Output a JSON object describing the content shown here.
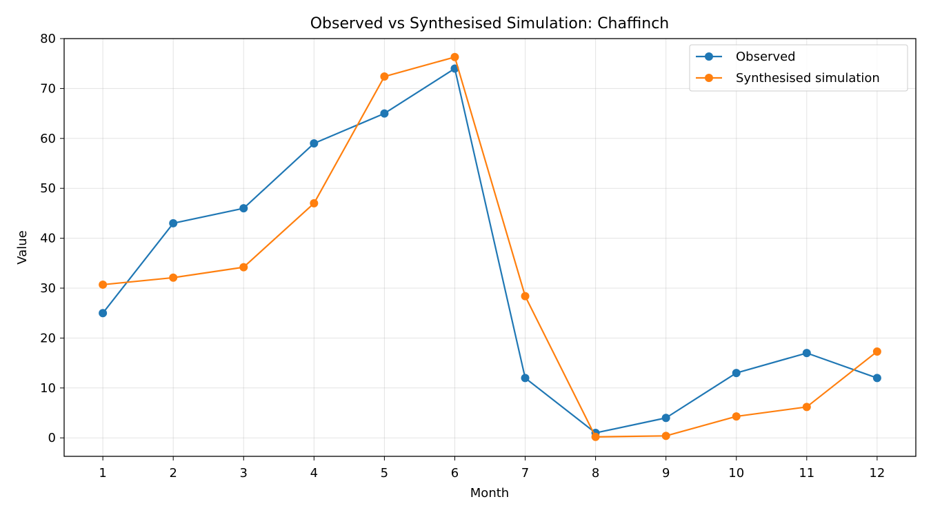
{
  "chart_data": {
    "type": "line",
    "title": "Observed vs Synthesised Simulation: Chaffinch",
    "xlabel": "Month",
    "ylabel": "Value",
    "x": [
      1,
      2,
      3,
      4,
      5,
      6,
      7,
      8,
      9,
      10,
      11,
      12
    ],
    "xlim": [
      0.45,
      12.55
    ],
    "ylim": [
      -3.7,
      80
    ],
    "x_ticks": [
      "1",
      "2",
      "3",
      "4",
      "5",
      "6",
      "7",
      "8",
      "9",
      "10",
      "11",
      "12"
    ],
    "y_ticks": [
      "0",
      "10",
      "20",
      "30",
      "40",
      "50",
      "60",
      "70",
      "80"
    ],
    "grid": true,
    "legend_position": "top-right",
    "series": [
      {
        "name": "Observed",
        "color": "#1f77b4",
        "marker": "circle",
        "values": [
          25,
          43,
          46,
          59,
          65,
          74,
          12,
          1,
          4,
          13,
          17,
          12
        ]
      },
      {
        "name": "Synthesised simulation",
        "color": "#ff7f0e",
        "marker": "circle",
        "values": [
          30.7,
          32.1,
          34.2,
          47,
          72.4,
          76.3,
          28.4,
          0.2,
          0.4,
          4.3,
          6.2,
          17.3
        ]
      }
    ]
  }
}
